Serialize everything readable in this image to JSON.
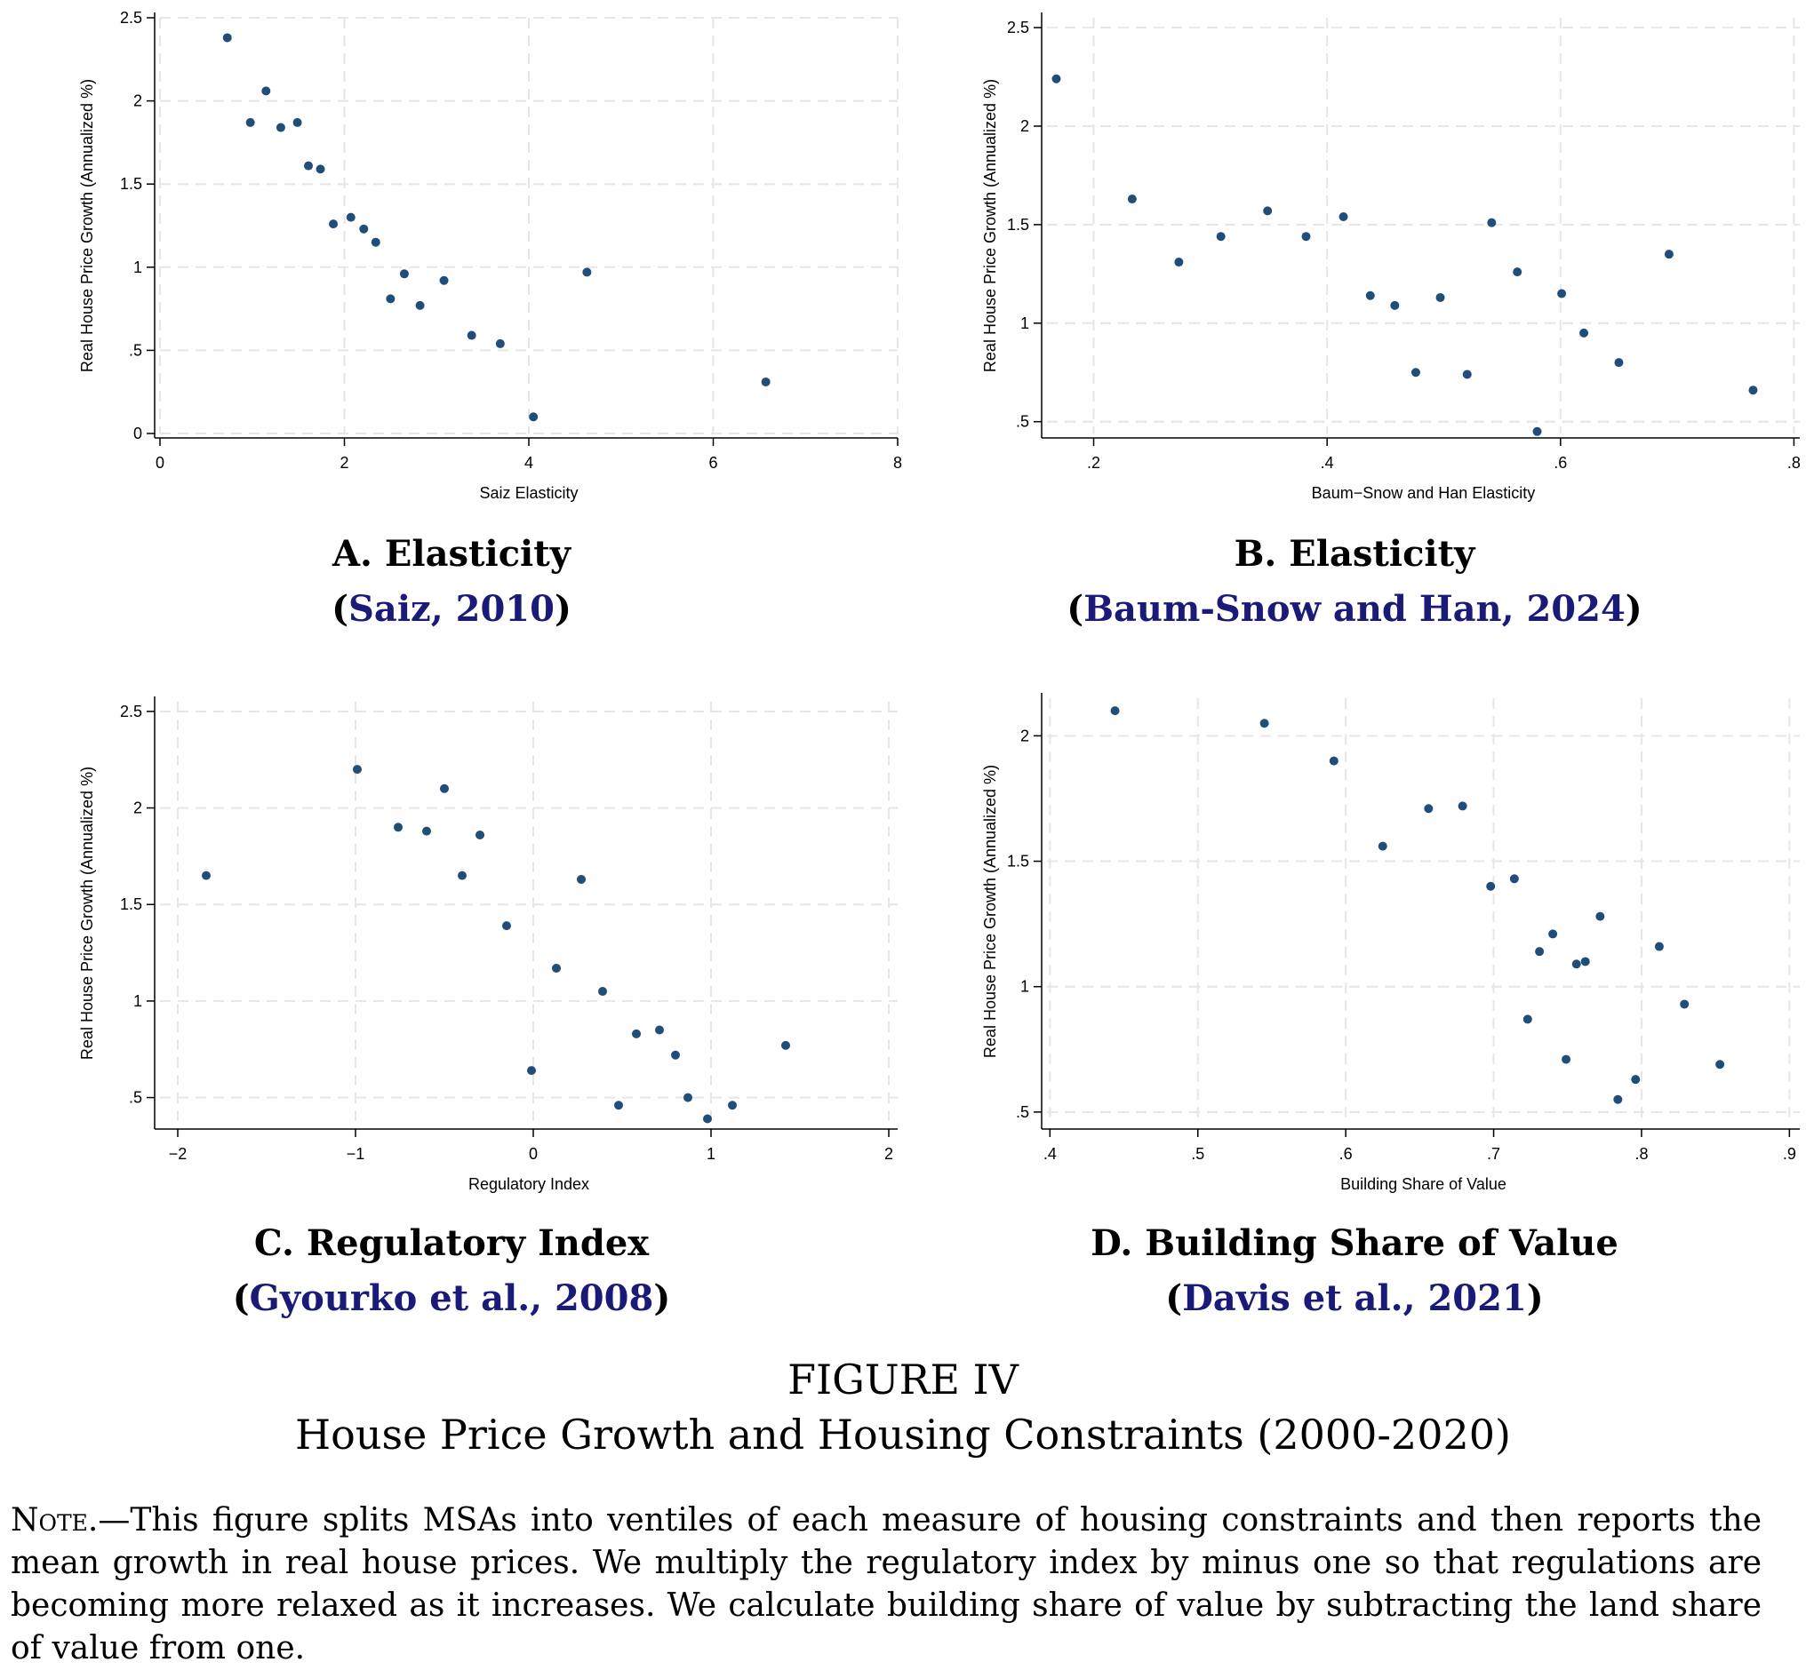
{
  "figure": {
    "number": "FIGURE IV",
    "title": "House Price Growth and Housing Constraints (2000-2020)",
    "note_label": "Note.",
    "note_text": "—This figure splits MSAs into ventiles of each measure of housing constraints and then reports the mean growth in real house prices. We multiply the regulatory index by minus one so that regulations are becoming more relaxed as it increases. We calculate building share of value by subtracting the land share of value from one."
  },
  "colors": {
    "marker": "#1f4e79",
    "grid": "#e6e6e6",
    "citation": "#1a1a78"
  },
  "panels": [
    {
      "cap1": "A. Elasticity",
      "cap2_open": "(",
      "cap2_ref": "Saiz, 2010",
      "cap2_close": ")"
    },
    {
      "cap1": "B. Elasticity",
      "cap2_open": "(",
      "cap2_ref": "Baum-Snow and Han, 2024",
      "cap2_close": ")"
    },
    {
      "cap1": "C. Regulatory Index",
      "cap2_open": "(",
      "cap2_ref": "Gyourko et al., 2008",
      "cap2_close": ")"
    },
    {
      "cap1": "D. Building Share of Value",
      "cap2_open": "(",
      "cap2_ref": "Davis et al., 2021",
      "cap2_close": ")"
    }
  ],
  "chart_data": [
    {
      "type": "scatter",
      "xlabel": "Saiz Elasticity",
      "ylabel": "Real House Price Growth (Annualized %)",
      "xlim": [
        0,
        8
      ],
      "ylim": [
        0,
        2.5
      ],
      "xticks": [
        0,
        2,
        4,
        6,
        8
      ],
      "xtick_labels": [
        "0",
        "2",
        "4",
        "6",
        "8"
      ],
      "yticks": [
        0,
        0.5,
        1,
        1.5,
        2,
        2.5
      ],
      "ytick_labels": [
        "0",
        ".5",
        "1",
        "1.5",
        "2",
        "2.5"
      ],
      "grid": true,
      "x": [
        0.73,
        0.98,
        1.15,
        1.31,
        1.49,
        1.61,
        1.74,
        1.88,
        2.07,
        2.21,
        2.34,
        2.5,
        2.65,
        2.82,
        3.08,
        3.38,
        3.69,
        4.05,
        4.63,
        6.57
      ],
      "y": [
        2.38,
        1.87,
        2.06,
        1.84,
        1.87,
        1.61,
        1.59,
        1.26,
        1.3,
        1.23,
        1.15,
        0.81,
        0.96,
        0.77,
        0.92,
        0.59,
        0.54,
        0.1,
        0.97,
        0.31
      ]
    },
    {
      "type": "scatter",
      "xlabel": "Baum−Snow and Han Elasticity",
      "ylabel": "Real House Price Growth (Annualized %)",
      "xlim": [
        0.16,
        0.805
      ],
      "ylim": [
        0.44,
        2.55
      ],
      "xticks": [
        0.2,
        0.4,
        0.6,
        0.8
      ],
      "xtick_labels": [
        ".2",
        ".4",
        ".6",
        ".8"
      ],
      "yticks": [
        0.5,
        1,
        1.5,
        2,
        2.5
      ],
      "ytick_labels": [
        ".5",
        "1",
        "1.5",
        "2",
        "2.5"
      ],
      "grid": true,
      "x": [
        0.168,
        0.233,
        0.273,
        0.309,
        0.349,
        0.382,
        0.414,
        0.437,
        0.458,
        0.476,
        0.497,
        0.52,
        0.541,
        0.563,
        0.58,
        0.601,
        0.62,
        0.65,
        0.693,
        0.765
      ],
      "y": [
        2.24,
        1.63,
        1.31,
        1.44,
        1.57,
        1.44,
        1.54,
        1.14,
        1.09,
        0.75,
        1.13,
        0.74,
        1.51,
        1.26,
        0.45,
        1.15,
        0.95,
        0.8,
        1.35,
        0.66
      ]
    },
    {
      "type": "scatter",
      "xlabel": "Regulatory Index",
      "ylabel": "Real House Price Growth (Annualized %)",
      "xlim": [
        -2.1,
        2.05
      ],
      "ylim": [
        0.36,
        2.55
      ],
      "xticks": [
        -2,
        -1,
        0,
        1,
        2
      ],
      "xtick_labels": [
        "−2",
        "−1",
        "0",
        "1",
        "2"
      ],
      "yticks": [
        0.5,
        1,
        1.5,
        2,
        2.5
      ],
      "ytick_labels": [
        ".5",
        "1",
        "1.5",
        "2",
        "2.5"
      ],
      "grid": true,
      "x": [
        -1.84,
        -0.99,
        -0.76,
        -0.6,
        -0.5,
        -0.4,
        -0.3,
        -0.15,
        -0.01,
        0.13,
        0.27,
        0.39,
        0.48,
        0.58,
        0.71,
        0.8,
        0.87,
        0.98,
        1.12,
        1.42
      ],
      "y": [
        1.65,
        2.2,
        1.9,
        1.88,
        2.1,
        1.65,
        1.86,
        1.39,
        0.64,
        1.17,
        1.63,
        1.05,
        0.46,
        0.83,
        0.85,
        0.72,
        0.5,
        0.39,
        0.46,
        0.77
      ]
    },
    {
      "type": "scatter",
      "xlabel": "Building Share of Value",
      "ylabel": "Real House Price Growth (Annualized %)",
      "xlim": [
        0.398,
        0.907
      ],
      "ylim": [
        0.45,
        2.15
      ],
      "xticks": [
        0.4,
        0.5,
        0.6,
        0.7,
        0.8,
        0.9
      ],
      "xtick_labels": [
        ".4",
        ".5",
        ".6",
        ".7",
        ".8",
        ".9"
      ],
      "yticks": [
        0.5,
        1,
        1.5,
        2
      ],
      "ytick_labels": [
        ".5",
        "1",
        "1.5",
        "2"
      ],
      "grid": true,
      "x": [
        0.444,
        0.545,
        0.592,
        0.625,
        0.656,
        0.679,
        0.698,
        0.714,
        0.723,
        0.731,
        0.74,
        0.749,
        0.756,
        0.762,
        0.772,
        0.784,
        0.796,
        0.812,
        0.829,
        0.853
      ],
      "y": [
        2.1,
        2.05,
        1.9,
        1.56,
        1.71,
        1.72,
        1.4,
        1.43,
        0.87,
        1.14,
        1.21,
        0.71,
        1.09,
        1.1,
        1.28,
        0.55,
        0.63,
        1.16,
        0.93,
        0.69
      ]
    }
  ]
}
